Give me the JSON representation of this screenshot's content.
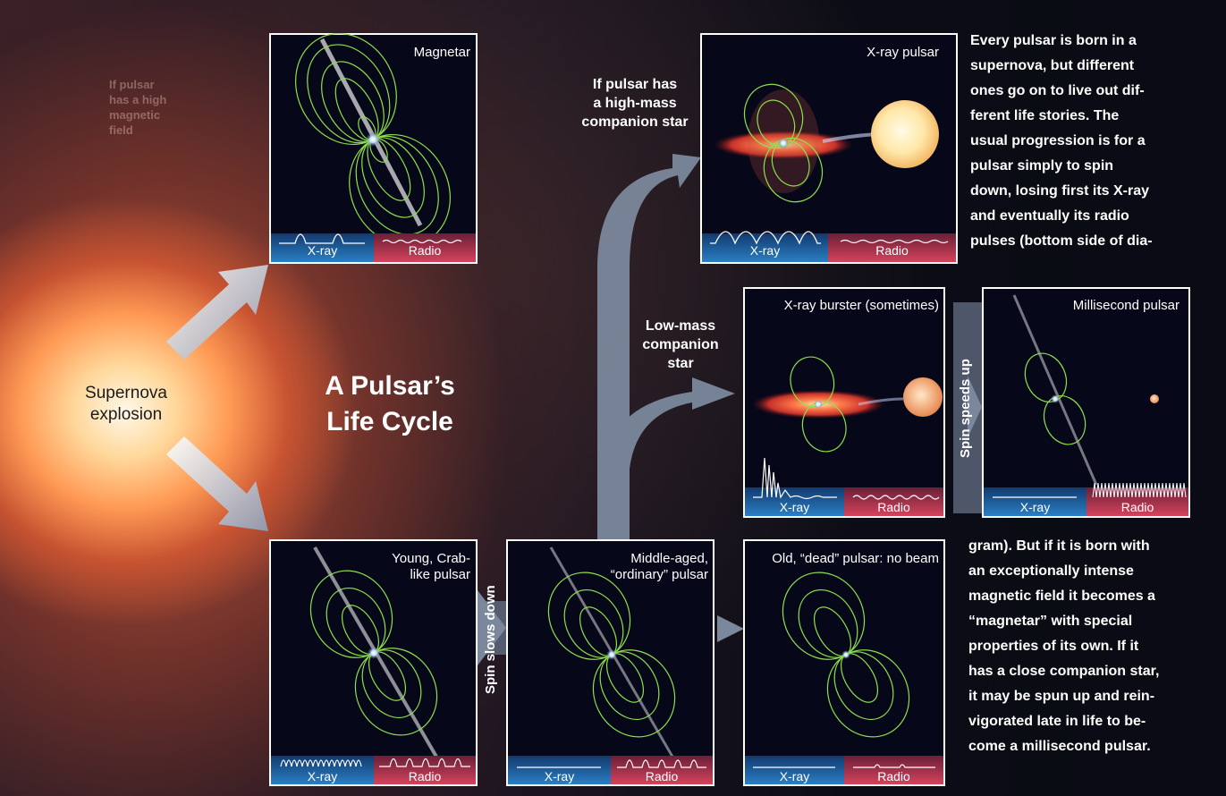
{
  "title": {
    "line1": "A Pulsar’s",
    "line2": "Life Cycle"
  },
  "supernova": {
    "line1": "Supernova",
    "line2": "explosion"
  },
  "faded_note": [
    "If pulsar",
    "has a high",
    "magnetic",
    "field"
  ],
  "arrow_labels": {
    "high_mass": [
      "If pulsar has",
      "a high-mass",
      "companion star"
    ],
    "low_mass": [
      "Low-mass",
      "companion",
      "star"
    ],
    "spin_down": "Spin slows down",
    "spin_up": "Spin speeds up"
  },
  "band_labels": {
    "xray": "X-ray",
    "radio": "Radio"
  },
  "panels": [
    {
      "id": "magnetar",
      "title": [
        "Magnetar"
      ]
    },
    {
      "id": "young",
      "title": [
        "Young, Crab-",
        "like pulsar"
      ]
    },
    {
      "id": "middle",
      "title": [
        "Middle-aged,",
        "“ordinary” pulsar"
      ]
    },
    {
      "id": "old",
      "title": [
        "Old, “dead” pulsar: no beam"
      ]
    },
    {
      "id": "xray_pulsar",
      "title": [
        "X-ray pulsar"
      ]
    },
    {
      "id": "burster",
      "title": [
        "X-ray burster (sometimes)"
      ]
    },
    {
      "id": "msp",
      "title": [
        "Millisecond pulsar"
      ]
    }
  ],
  "side_text": {
    "top": [
      "Every pulsar is born in a",
      "supernova, but different",
      "ones go on to live out dif-",
      "ferent life stories. The",
      "usual progression is for a",
      "pulsar simply to spin",
      "down, losing first its X-ray",
      "and eventually its radio",
      "pulses (bottom side of dia-"
    ],
    "bottom": [
      "gram). But if it is born with",
      "an exceptionally intense",
      "magnetic field it becomes a",
      "“magnetar” with special",
      "properties of its own. If it",
      "has a close companion star,",
      "it may be spun up and rein-",
      "vigorated late in life to be-",
      "come a millisecond pulsar."
    ]
  },
  "colors": {
    "field_line": "#8ee04a",
    "xray_band": "#1e6fb4",
    "radio_band": "#c43a52",
    "arrow": "#7d8ba0",
    "panel_bg": "#06081a"
  }
}
